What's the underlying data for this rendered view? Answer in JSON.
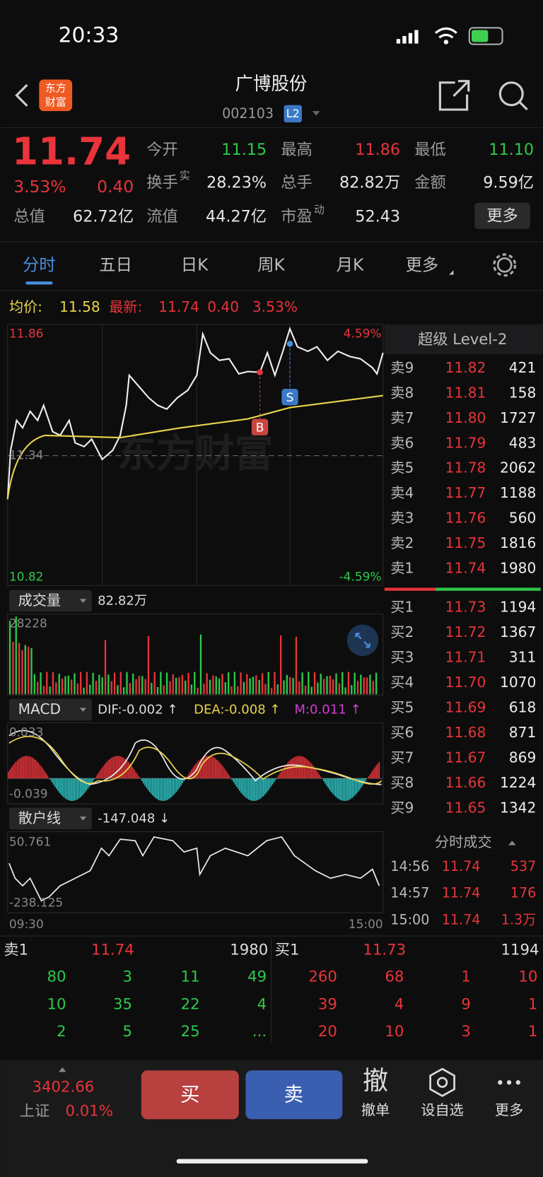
{
  "status_bar": {
    "time": "20:33"
  },
  "header": {
    "logo": [
      "东方",
      "财富"
    ],
    "title": "广博股份",
    "code": "002103",
    "badge": "L2"
  },
  "quote": {
    "price": "11.74",
    "change_pct": "3.53%",
    "change": "0.40",
    "fields": [
      {
        "label": "今开",
        "value": "11.15",
        "color": "#2ec94a"
      },
      {
        "label": "最高",
        "value": "11.86",
        "color": "#e8343a"
      },
      {
        "label": "最低",
        "value": "11.10",
        "color": "#2ec94a"
      },
      {
        "label": "换手",
        "sup": "实",
        "value": "28.23%",
        "color": "#e6e6e6"
      },
      {
        "label": "总手",
        "value": "82.82万",
        "color": "#e6e6e6"
      },
      {
        "label": "金额",
        "value": "9.59亿",
        "color": "#e6e6e6"
      },
      {
        "label": "总值",
        "value": "62.72亿",
        "color": "#e6e6e6"
      },
      {
        "label": "流值",
        "value": "44.27亿",
        "color": "#e6e6e6"
      },
      {
        "label": "市盈",
        "sup": "动",
        "value": "52.43",
        "color": "#e6e6e6"
      }
    ],
    "more": "更多"
  },
  "tabs": [
    "分时",
    "五日",
    "日K",
    "周K",
    "月K",
    "更多"
  ],
  "info": {
    "avg_label": "均价:",
    "avg": "11.58",
    "last_label": "最新:",
    "last": "11.74",
    "change": "0.40",
    "change_pct": "3.53%"
  },
  "intraday": {
    "high": "11.86",
    "mid": "11.34",
    "low": "10.82",
    "high_pct": "4.59%",
    "low_pct": "-4.59%",
    "buy_marker": "B",
    "sell_marker": "S",
    "watermark": "东方财富"
  },
  "volume": {
    "label": "成交量",
    "total": "82.82万",
    "max": "28228"
  },
  "macd": {
    "label": "MACD",
    "dif": "DIF:-0.002 ↑",
    "dea": "DEA:-0.008 ↑",
    "m": "M:0.011 ↑",
    "top": "0.033",
    "bottom": "-0.039"
  },
  "retail": {
    "label": "散户线",
    "value": "-147.048 ↓",
    "top": "50.761",
    "bottom": "-238.125",
    "start": "09:30",
    "end": "15:00"
  },
  "order_book": {
    "title": "超级 Level-2",
    "sells": [
      [
        "卖9",
        "11.82",
        "421"
      ],
      [
        "卖8",
        "11.81",
        "158"
      ],
      [
        "卖7",
        "11.80",
        "1727"
      ],
      [
        "卖6",
        "11.79",
        "483"
      ],
      [
        "卖5",
        "11.78",
        "2062"
      ],
      [
        "卖4",
        "11.77",
        "1188"
      ],
      [
        "卖3",
        "11.76",
        "560"
      ],
      [
        "卖2",
        "11.75",
        "1816"
      ],
      [
        "卖1",
        "11.74",
        "1980"
      ]
    ],
    "buys": [
      [
        "买1",
        "11.73",
        "1194"
      ],
      [
        "买2",
        "11.72",
        "1367"
      ],
      [
        "买3",
        "11.71",
        "311"
      ],
      [
        "买4",
        "11.70",
        "1070"
      ],
      [
        "买5",
        "11.69",
        "618"
      ],
      [
        "买6",
        "11.68",
        "871"
      ],
      [
        "买7",
        "11.67",
        "869"
      ],
      [
        "买8",
        "11.66",
        "1224"
      ],
      [
        "买9",
        "11.65",
        "1342"
      ]
    ],
    "trades_title": "分时成交",
    "trades": [
      [
        "14:56",
        "11.74",
        "537"
      ],
      [
        "14:57",
        "11.74",
        "176"
      ],
      [
        "15:00",
        "11.74",
        "1.3万"
      ]
    ]
  },
  "queue": {
    "sell": {
      "label": "卖1",
      "price": "11.74",
      "volume": "1980",
      "rows": [
        [
          "80",
          "3",
          "11",
          "49"
        ],
        [
          "10",
          "35",
          "22",
          "4"
        ],
        [
          "2",
          "5",
          "25",
          "..."
        ]
      ]
    },
    "buy": {
      "label": "买1",
      "price": "11.73",
      "volume": "1194",
      "rows": [
        [
          "260",
          "68",
          "1",
          "10"
        ],
        [
          "39",
          "4",
          "9",
          "1"
        ],
        [
          "20",
          "10",
          "3",
          "1"
        ]
      ]
    }
  },
  "bottom_bar": {
    "index_value": "3402.66",
    "index_name": "上证",
    "index_pct": "0.01%",
    "buy": "买",
    "sell": "卖",
    "cancel_icon": "撤",
    "cancel": "撤单",
    "watch": "设自选",
    "more": "更多"
  }
}
